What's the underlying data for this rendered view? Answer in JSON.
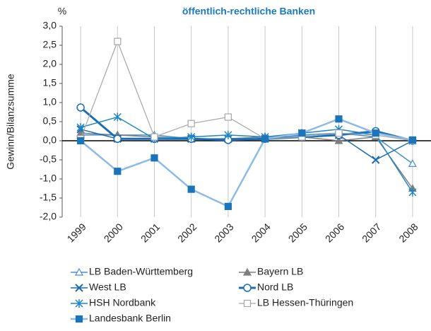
{
  "chart_data": {
    "type": "line",
    "title": "öffentlich-rechtliche Banken",
    "y_unit": "%",
    "ylabel": "Gewinn/Bilanzsumme",
    "categories": [
      "1999",
      "2000",
      "2001",
      "2002",
      "2003",
      "2004",
      "2005",
      "2006",
      "2007",
      "2008"
    ],
    "ylim": [
      -2.0,
      3.0
    ],
    "yticks": [
      {
        "value": 3.0,
        "label": "3,0"
      },
      {
        "value": 2.5,
        "label": "2,5"
      },
      {
        "value": 2.0,
        "label": "2,0"
      },
      {
        "value": 1.5,
        "label": "1,5"
      },
      {
        "value": 1.0,
        "label": "1,0"
      },
      {
        "value": 0.5,
        "label": "0,5"
      },
      {
        "value": 0.0,
        "label": "0,0"
      },
      {
        "value": -0.5,
        "label": "-0,5"
      },
      {
        "value": -1.0,
        "label": "-1,0"
      },
      {
        "value": -1.5,
        "label": "-1,5"
      },
      {
        "value": -2.0,
        "label": "-2,0"
      }
    ],
    "grid": "x",
    "series": [
      {
        "name": "LB Baden-Württemberg",
        "color": "#4a90cf",
        "marker": "triangle-open",
        "width": 1.5,
        "values": [
          0.15,
          0.15,
          0.15,
          0.05,
          0.05,
          0.1,
          0.15,
          0.2,
          0.1,
          -0.6
        ]
      },
      {
        "name": "Bayern LB",
        "color": "#7f7f7f",
        "marker": "triangle",
        "width": 1.5,
        "values": [
          0.2,
          0.15,
          0.1,
          0.05,
          0.05,
          0.1,
          0.1,
          0.0,
          0.1,
          -1.25
        ]
      },
      {
        "name": "West LB",
        "color": "#1a6db5",
        "marker": "x",
        "width": 1.5,
        "values": [
          0.3,
          0.05,
          0.05,
          0.05,
          0.05,
          0.05,
          0.1,
          0.15,
          -0.5,
          0.0
        ]
      },
      {
        "name": "Nord LB",
        "color": "#1a6db5",
        "marker": "circle-open",
        "width": 3,
        "values": [
          0.87,
          0.05,
          0.05,
          0.05,
          0.02,
          0.05,
          0.1,
          0.15,
          0.25,
          0.0
        ]
      },
      {
        "name": "HSH Nordbank",
        "color": "#1f86c6",
        "marker": "asterisk",
        "width": 1.5,
        "values": [
          0.35,
          0.62,
          0.05,
          0.1,
          0.15,
          0.1,
          0.2,
          0.3,
          0.15,
          -1.35
        ]
      },
      {
        "name": "LB Hessen-Thüringen",
        "color": "#a6a6a6",
        "marker": "square-open",
        "width": 1.2,
        "values": [
          0.05,
          2.6,
          0.1,
          0.45,
          0.62,
          0.05,
          0.1,
          0.2,
          0.15,
          0.0
        ]
      },
      {
        "name": "Landesbank Berlin",
        "color": "#8dbbe6",
        "marker": "square",
        "marker_color": "#1b75bb",
        "width": 2.5,
        "values": [
          0.0,
          -0.8,
          -0.45,
          -1.27,
          -1.72,
          0.05,
          0.2,
          0.57,
          0.2,
          0.02
        ]
      }
    ]
  }
}
